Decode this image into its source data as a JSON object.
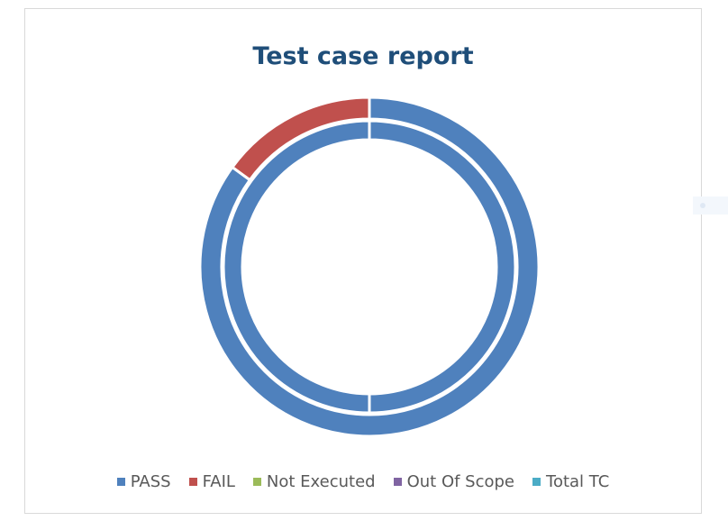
{
  "chart_data": {
    "type": "pie",
    "variant": "doughnut",
    "title": "Test case report",
    "legend_position": "bottom",
    "categories": [
      "PASS",
      "FAIL",
      "Not Executed",
      "Out Of Scope",
      "Total TC"
    ],
    "colors": [
      "#4f81bd",
      "#c0504d",
      "#9bbb59",
      "#8064a2",
      "#4bacc6"
    ],
    "series": [
      {
        "values": [
          85,
          15,
          0,
          0,
          0
        ]
      },
      {
        "values": [
          100,
          0,
          0,
          0,
          0
        ]
      }
    ]
  }
}
